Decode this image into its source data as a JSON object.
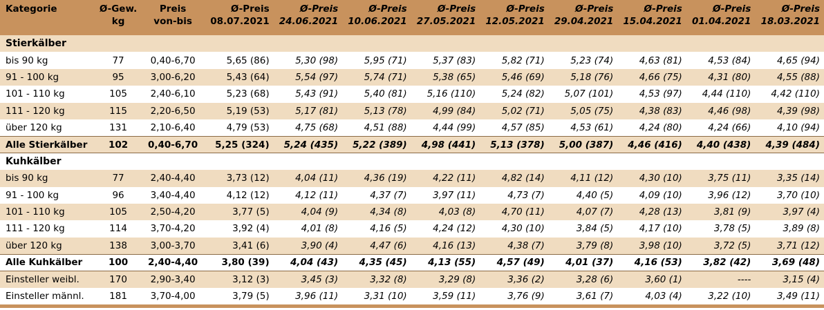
{
  "header": {
    "col_kategorie": "Kategorie",
    "col_gew_1": "Ø-Gew.",
    "col_gew_2": "kg",
    "col_preis_1": "Preis",
    "col_preis_2": "von-bis",
    "price_cols": [
      {
        "top": "Ø-Preis",
        "date": "08.07.2021"
      },
      {
        "top": "Ø-Preis",
        "date": "24.06.2021"
      },
      {
        "top": "Ø-Preis",
        "date": "10.06.2021"
      },
      {
        "top": "Ø-Preis",
        "date": "27.05.2021"
      },
      {
        "top": "Ø-Preis",
        "date": "12.05.2021"
      },
      {
        "top": "Ø-Preis",
        "date": "29.04.2021"
      },
      {
        "top": "Ø-Preis",
        "date": "15.04.2021"
      },
      {
        "top": "Ø-Preis",
        "date": "01.04.2021"
      },
      {
        "top": "Ø-Preis",
        "date": "18.03.2021"
      }
    ]
  },
  "sections": {
    "stier": "Stierkälber",
    "kuh": "Kuhkälber"
  },
  "rows": {
    "stier": [
      {
        "cells": [
          "bis 90 kg",
          "77",
          "0,40-6,70",
          "5,65 (86)",
          "5,30 (98)",
          "5,95 (71)",
          "5,37 (83)",
          "5,82 (71)",
          "5,23 (74)",
          "4,63 (81)",
          "4,53 (84)",
          "4,65 (94)"
        ]
      },
      {
        "cells": [
          "91 - 100 kg",
          "95",
          "3,00-6,20",
          "5,43 (64)",
          "5,54 (97)",
          "5,74 (71)",
          "5,38 (65)",
          "5,46 (69)",
          "5,18 (76)",
          "4,66 (75)",
          "4,31 (80)",
          "4,55 (88)"
        ]
      },
      {
        "cells": [
          "101 - 110 kg",
          "105",
          "2,40-6,10",
          "5,23 (68)",
          "5,43 (91)",
          "5,40 (81)",
          "5,16 (110)",
          "5,24 (82)",
          "5,07 (101)",
          "4,53 (97)",
          "4,44 (110)",
          "4,42 (110)"
        ]
      },
      {
        "cells": [
          "111 - 120 kg",
          "115",
          "2,20-6,50",
          "5,19 (53)",
          "5,17 (81)",
          "5,13 (78)",
          "4,99 (84)",
          "5,02 (71)",
          "5,05 (75)",
          "4,38 (83)",
          "4,46 (98)",
          "4,39 (98)"
        ]
      },
      {
        "cells": [
          "über 120 kg",
          "131",
          "2,10-6,40",
          "4,79 (53)",
          "4,75 (68)",
          "4,51 (88)",
          "4,44 (99)",
          "4,57 (85)",
          "4,53 (61)",
          "4,24 (80)",
          "4,24 (66)",
          "4,10 (94)"
        ]
      }
    ],
    "stier_total": {
      "cells": [
        "Alle Stierkälber",
        "102",
        "0,40-6,70",
        "5,25 (324)",
        "5,24 (435)",
        "5,22 (389)",
        "4,98 (441)",
        "5,13 (378)",
        "5,00 (387)",
        "4,46 (416)",
        "4,40 (438)",
        "4,39 (484)"
      ]
    },
    "kuh": [
      {
        "cells": [
          "bis 90 kg",
          "77",
          "2,40-4,40",
          "3,73 (12)",
          "4,04 (11)",
          "4,36 (19)",
          "4,22 (11)",
          "4,82 (14)",
          "4,11 (12)",
          "4,30 (10)",
          "3,75 (11)",
          "3,35 (14)"
        ]
      },
      {
        "cells": [
          "91 - 100 kg",
          "96",
          "3,40-4,40",
          "4,12 (12)",
          "4,12 (11)",
          "4,37 (7)",
          "3,97 (11)",
          "4,73 (7)",
          "4,40 (5)",
          "4,09 (10)",
          "3,96 (12)",
          "3,70 (10)"
        ]
      },
      {
        "cells": [
          "101 - 110 kg",
          "105",
          "2,50-4,20",
          "3,77 (5)",
          "4,04 (9)",
          "4,34 (8)",
          "4,03 (8)",
          "4,70 (11)",
          "4,07 (7)",
          "4,28 (13)",
          "3,81 (9)",
          "3,97 (4)"
        ]
      },
      {
        "cells": [
          "111 - 120 kg",
          "114",
          "3,70-4,20",
          "3,92 (4)",
          "4,01 (8)",
          "4,16 (5)",
          "4,24 (12)",
          "4,30 (10)",
          "3,84 (5)",
          "4,17 (10)",
          "3,78 (5)",
          "3,89 (8)"
        ]
      },
      {
        "cells": [
          "über 120 kg",
          "138",
          "3,00-3,70",
          "3,41 (6)",
          "3,90 (4)",
          "4,47 (6)",
          "4,16 (13)",
          "4,38 (7)",
          "3,79 (8)",
          "3,98 (10)",
          "3,72 (5)",
          "3,71 (12)"
        ]
      }
    ],
    "kuh_total": {
      "cells": [
        "Alle Kuhkälber",
        "100",
        "2,40-4,40",
        "3,80 (39)",
        "4,04 (43)",
        "4,35 (45)",
        "4,13 (55)",
        "4,57 (49)",
        "4,01 (37)",
        "4,16 (53)",
        "3,82 (42)",
        "3,69 (48)"
      ]
    },
    "einsteller": [
      {
        "cells": [
          "Einsteller weibl.",
          "170",
          "2,90-3,40",
          "3,12 (3)",
          "3,45 (3)",
          "3,32 (8)",
          "3,29 (8)",
          "3,36 (2)",
          "3,28 (6)",
          "3,60 (1)",
          "----",
          "3,15 (4)"
        ]
      },
      {
        "cells": [
          "Einsteller männl.",
          "181",
          "3,70-4,00",
          "3,79 (5)",
          "3,96 (11)",
          "3,31 (10)",
          "3,59 (11)",
          "3,76 (9)",
          "3,61 (7)",
          "4,03 (4)",
          "3,22 (10)",
          "3,49 (11)"
        ]
      }
    ]
  },
  "colors": {
    "header_bg": "#c8925d",
    "band_tan": "#f0dcc0",
    "band_light": "#ffffff"
  }
}
